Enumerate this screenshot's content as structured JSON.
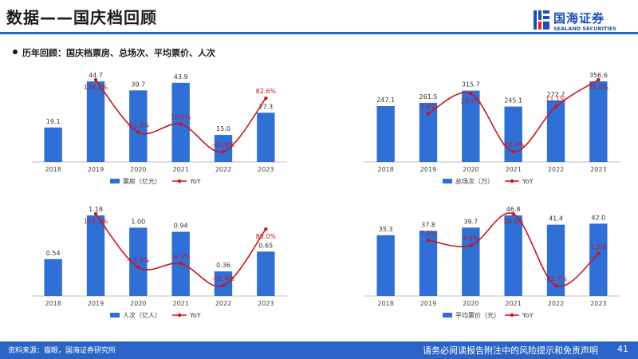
{
  "page": {
    "title": "数据——国庆档回顾",
    "subtitle": "历年回顾：国庆档票房、总场次、平均票价、人次",
    "source": "资料来源：猫眼，国海证券研究所",
    "disclaimer": "请务必阅读报告附注中的风险提示和免责声明",
    "page_number": "41",
    "colors": {
      "bar": "#2f6fd6",
      "line": "#c8161d",
      "accent": "#2b63c6"
    }
  },
  "logo": {
    "cn": "国海证券",
    "en": "SEALAND SECURITIES",
    "icon": "sealand-logo-icon"
  },
  "chart_data": [
    {
      "type": "bar",
      "categories": [
        "2018",
        "2019",
        "2020",
        "2021",
        "2022",
        "2023"
      ],
      "series": [
        {
          "name": "票房（亿元）",
          "values": [
            19.1,
            44.7,
            39.7,
            43.9,
            15.0,
            27.3
          ],
          "labels": [
            "19.1",
            "44.7",
            "39.7",
            "43.9",
            "15.0",
            "27.3"
          ]
        },
        {
          "name": "YoY",
          "type": "line",
          "values": [
            null,
            134.1,
            -11.2,
            10.6,
            -65.9,
            82.6
          ],
          "labels": [
            "",
            "134.1%",
            "-11.2%",
            "10.6%",
            "-65.9%",
            "82.6%"
          ]
        }
      ]
    },
    {
      "type": "bar",
      "categories": [
        "2018",
        "2019",
        "2020",
        "2021",
        "2022",
        "2023"
      ],
      "series": [
        {
          "name": "总场次（万）",
          "values": [
            247.1,
            261.5,
            315.7,
            245.1,
            272.2,
            356.6
          ],
          "labels": [
            "247.1",
            "261.5",
            "315.7",
            "245.1",
            "272.2",
            "356.6"
          ]
        },
        {
          "name": "YoY",
          "type": "line",
          "values": [
            null,
            5.8,
            20.7,
            -22.4,
            11.1,
            31.0
          ],
          "labels": [
            "",
            "5.8%",
            "20.7%",
            "-22.4%",
            "11.1%",
            "31.0%"
          ]
        }
      ]
    },
    {
      "type": "bar",
      "categories": [
        "2018",
        "2019",
        "2020",
        "2021",
        "2022",
        "2023"
      ],
      "series": [
        {
          "name": "人次（亿人）",
          "values": [
            0.54,
            1.18,
            1.0,
            0.94,
            0.36,
            0.65
          ],
          "labels": [
            "0.54",
            "1.18",
            "1.00",
            "0.94",
            "0.36",
            "0.65"
          ]
        },
        {
          "name": "YoY",
          "type": "line",
          "values": [
            null,
            118.2,
            -15.3,
            -6.3,
            -61.4,
            80.0
          ],
          "labels": [
            "",
            "118.2%",
            "-15.3%",
            "-6.3%",
            "-61.4%",
            "80.0%"
          ]
        }
      ]
    },
    {
      "type": "bar",
      "categories": [
        "2018",
        "2019",
        "2020",
        "2021",
        "2022",
        "2023"
      ],
      "series": [
        {
          "name": "平均票价（元）",
          "values": [
            35.3,
            37.8,
            39.7,
            46.8,
            41.4,
            42.0
          ],
          "labels": [
            "35.3",
            "37.8",
            "39.7",
            "46.8",
            "41.4",
            "42.0"
          ]
        },
        {
          "name": "YoY",
          "type": "line",
          "values": [
            null,
            7.1,
            4.9,
            18.0,
            -11.7,
            1.5
          ],
          "labels": [
            "",
            "7.1%",
            "4.9%",
            "18.0%",
            "-11.7%",
            "1.5%"
          ]
        }
      ]
    }
  ]
}
